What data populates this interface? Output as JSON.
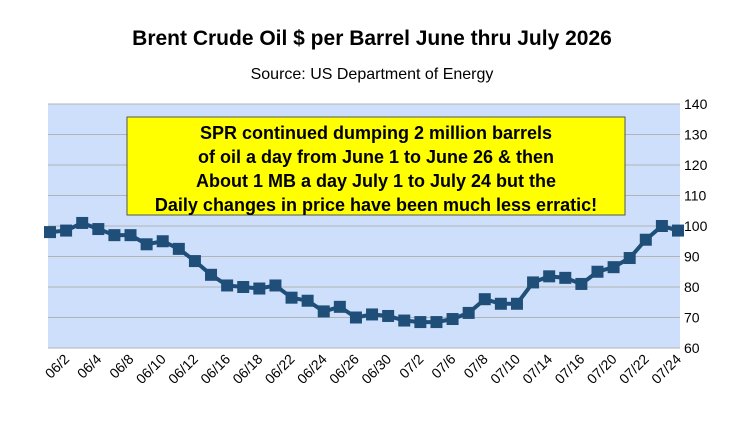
{
  "chart_data": {
    "type": "line",
    "title": "Brent Crude Oil $ per Barrel June thru July 2026",
    "subtitle": "Source: US Department of Energy",
    "annotation": [
      "SPR continued dumping 2 million barrels",
      "of oil a day from June 1 to June 26 & then",
      "About 1 MB a day July 1 to July 24 but the",
      "Daily changes in price have been much less erratic!"
    ],
    "categories": [
      null,
      "06/2",
      null,
      "06/4",
      null,
      "06/8",
      null,
      "06/10",
      null,
      "06/12",
      null,
      "06/16",
      null,
      "06/18",
      null,
      "06/22",
      null,
      "06/24",
      null,
      "06/26",
      null,
      "06/30",
      null,
      "07/2",
      null,
      "07/6",
      null,
      "07/8",
      null,
      "07/10",
      null,
      "07/14",
      null,
      "07/16",
      null,
      "07/20",
      null,
      "07/22",
      null,
      "07/24"
    ],
    "series": [
      {
        "name": "Brent",
        "color": "#1f4e79",
        "values": [
          98,
          98.5,
          101,
          99,
          97,
          97,
          94,
          95,
          92.5,
          88.5,
          84,
          80.5,
          80,
          79.5,
          80.5,
          76.5,
          75.5,
          72,
          73.5,
          70,
          71,
          70.5,
          69,
          68.5,
          68.5,
          69.5,
          71.5,
          76,
          74.5,
          74.5,
          81.5,
          83.5,
          83,
          81,
          85,
          86.5,
          89.5,
          95.5,
          100,
          98.5
        ]
      }
    ],
    "ylim": [
      60,
      140
    ],
    "yticks": [
      60,
      70,
      80,
      90,
      100,
      110,
      120,
      130,
      140
    ],
    "grid": true,
    "y_axis_side": "right"
  }
}
